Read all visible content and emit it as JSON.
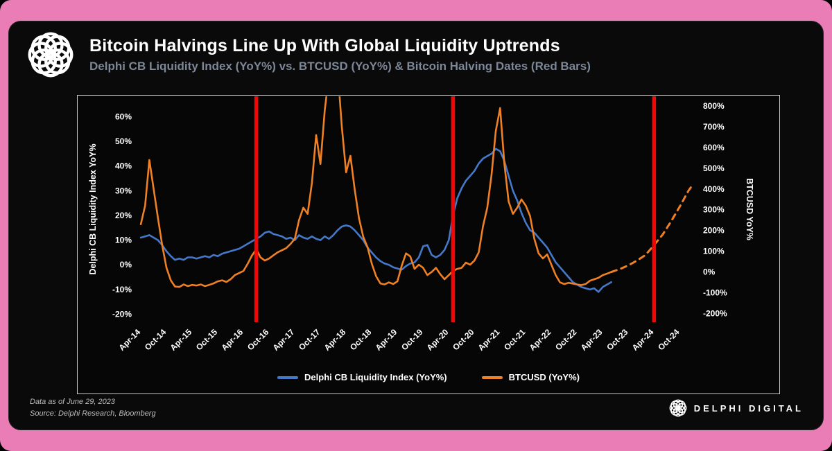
{
  "page": {
    "background_color": "#ea7cb6",
    "card_color": "#0a0a0b"
  },
  "header": {
    "title": "Bitcoin Halvings Line Up With Global Liquidity Uptrends",
    "subtitle": "Delphi CB Liquidity Index (YoY%) vs. BTCUSD (YoY%) & Bitcoin Halving Dates (Red Bars)",
    "logo": "delphi-knot-logo"
  },
  "footer": {
    "data_as_of": "Data as of June 29, 2023",
    "source": "Source: Delphi Research, Bloomberg",
    "brand": "DELPHI DIGITAL"
  },
  "chart_data": {
    "type": "line",
    "title": "Bitcoin Halvings Line Up With Global Liquidity Uptrends",
    "subtitle": "Delphi CB Liquidity Index (YoY%) vs. BTCUSD (YoY%) & Bitcoin Halving Dates (Red Bars)",
    "x_axis": {
      "unit": "months since Apr-2014",
      "tick_labels": [
        "Apr-14",
        "Oct-14",
        "Apr-15",
        "Oct-15",
        "Apr-16",
        "Oct-16",
        "Apr-17",
        "Oct-17",
        "Apr-18",
        "Oct-18",
        "Apr-19",
        "Oct-19",
        "Apr-20",
        "Oct-20",
        "Apr-21",
        "Oct-21",
        "Apr-22",
        "Oct-22",
        "Apr-23",
        "Oct-23",
        "Apr-24",
        "Oct-24"
      ],
      "tick_months": [
        0,
        6,
        12,
        18,
        24,
        30,
        36,
        42,
        48,
        54,
        60,
        66,
        72,
        78,
        84,
        90,
        96,
        102,
        108,
        114,
        120,
        126
      ]
    },
    "x_range": [
      -0.5,
      129.5
    ],
    "left_axis": {
      "label": "Delphi CB Liquidity Index YoY%",
      "tick_labels": [
        "60%",
        "50%",
        "40%",
        "30%",
        "20%",
        "10%",
        "0%",
        "-10%",
        "-20%"
      ],
      "tick_values": [
        60,
        50,
        40,
        30,
        20,
        10,
        0,
        -10,
        -20
      ],
      "range": [
        -23.5,
        68.5
      ]
    },
    "right_axis": {
      "label": "BTCUSD YoY%",
      "tick_labels": [
        "800%",
        "700%",
        "600%",
        "500%",
        "400%",
        "300%",
        "200%",
        "100%",
        "0%",
        "-100%",
        "-200%"
      ],
      "tick_values": [
        800,
        700,
        600,
        500,
        400,
        300,
        200,
        100,
        0,
        -100,
        -200
      ],
      "range": [
        -245,
        850
      ]
    },
    "halvings": {
      "description": "Bitcoin Halving Dates (Red Bars)",
      "color": "#f70505",
      "months": [
        27,
        73,
        120
      ]
    },
    "series": [
      {
        "id": "liquidity",
        "name": "Delphi CB Liquidity Index (YoY%)",
        "axis": "left",
        "color": "#4479c9",
        "style": "solid",
        "points": [
          [
            0,
            11
          ],
          [
            1,
            11.5
          ],
          [
            2,
            12
          ],
          [
            3,
            11
          ],
          [
            4,
            10
          ],
          [
            5,
            8
          ],
          [
            6,
            5.5
          ],
          [
            7,
            3.5
          ],
          [
            8,
            2
          ],
          [
            9,
            2.5
          ],
          [
            10,
            2
          ],
          [
            11,
            3
          ],
          [
            12,
            3
          ],
          [
            13,
            2.5
          ],
          [
            14,
            3
          ],
          [
            15,
            3.5
          ],
          [
            16,
            3
          ],
          [
            17,
            4
          ],
          [
            18,
            3.5
          ],
          [
            19,
            4.5
          ],
          [
            20,
            5
          ],
          [
            21,
            5.5
          ],
          [
            22,
            6
          ],
          [
            23,
            6.5
          ],
          [
            24,
            7.5
          ],
          [
            25,
            8.5
          ],
          [
            26,
            9.5
          ],
          [
            27,
            10.5
          ],
          [
            28,
            11.5
          ],
          [
            29,
            13
          ],
          [
            30,
            13.5
          ],
          [
            31,
            12.5
          ],
          [
            32,
            12
          ],
          [
            33,
            11.5
          ],
          [
            34,
            10.5
          ],
          [
            35,
            11
          ],
          [
            36,
            10
          ],
          [
            37,
            12
          ],
          [
            38,
            11
          ],
          [
            39,
            10.5
          ],
          [
            40,
            11.5
          ],
          [
            41,
            10.5
          ],
          [
            42,
            10
          ],
          [
            43,
            11.5
          ],
          [
            44,
            10.5
          ],
          [
            45,
            12
          ],
          [
            46,
            14
          ],
          [
            47,
            15.5
          ],
          [
            48,
            16
          ],
          [
            49,
            15.5
          ],
          [
            50,
            14
          ],
          [
            51,
            12
          ],
          [
            52,
            10
          ],
          [
            53,
            7
          ],
          [
            54,
            5
          ],
          [
            55,
            3
          ],
          [
            56,
            1.5
          ],
          [
            57,
            0.5
          ],
          [
            58,
            0
          ],
          [
            59,
            -1
          ],
          [
            60,
            -1.5
          ],
          [
            61,
            -2
          ],
          [
            62,
            -0.5
          ],
          [
            63,
            0.5
          ],
          [
            64,
            1
          ],
          [
            65,
            3
          ],
          [
            66,
            7.5
          ],
          [
            67,
            8
          ],
          [
            68,
            4
          ],
          [
            69,
            3
          ],
          [
            70,
            4
          ],
          [
            71,
            6
          ],
          [
            72,
            10
          ],
          [
            73,
            20
          ],
          [
            74,
            27
          ],
          [
            75,
            31
          ],
          [
            76,
            34
          ],
          [
            77,
            36
          ],
          [
            78,
            38
          ],
          [
            79,
            41
          ],
          [
            80,
            43
          ],
          [
            81,
            44
          ],
          [
            82,
            45
          ],
          [
            83,
            47
          ],
          [
            84,
            46
          ],
          [
            85,
            42
          ],
          [
            86,
            36
          ],
          [
            87,
            30
          ],
          [
            88,
            26
          ],
          [
            89,
            21
          ],
          [
            90,
            17
          ],
          [
            91,
            14
          ],
          [
            92,
            13
          ],
          [
            93,
            11
          ],
          [
            94,
            9
          ],
          [
            95,
            7
          ],
          [
            96,
            4
          ],
          [
            97,
            1
          ],
          [
            98,
            -1
          ],
          [
            99,
            -3
          ],
          [
            100,
            -5
          ],
          [
            101,
            -7
          ],
          [
            102,
            -8
          ],
          [
            103,
            -9
          ],
          [
            104,
            -9.5
          ],
          [
            105,
            -10
          ],
          [
            106,
            -9.5
          ],
          [
            107,
            -11
          ],
          [
            108,
            -9
          ],
          [
            109,
            -8
          ],
          [
            110,
            -7
          ]
        ]
      },
      {
        "id": "btcusd",
        "name": "BTCUSD (YoY%)",
        "axis": "right",
        "color": "#ef8023",
        "style": "solid",
        "points": [
          [
            0,
            230
          ],
          [
            1,
            320
          ],
          [
            2,
            540
          ],
          [
            3,
            400
          ],
          [
            4,
            260
          ],
          [
            5,
            130
          ],
          [
            6,
            20
          ],
          [
            7,
            -40
          ],
          [
            8,
            -70
          ],
          [
            9,
            -72
          ],
          [
            10,
            -60
          ],
          [
            11,
            -68
          ],
          [
            12,
            -62
          ],
          [
            13,
            -65
          ],
          [
            14,
            -60
          ],
          [
            15,
            -68
          ],
          [
            16,
            -62
          ],
          [
            17,
            -55
          ],
          [
            18,
            -45
          ],
          [
            19,
            -40
          ],
          [
            20,
            -48
          ],
          [
            21,
            -35
          ],
          [
            22,
            -15
          ],
          [
            23,
            -5
          ],
          [
            24,
            5
          ],
          [
            25,
            40
          ],
          [
            26,
            80
          ],
          [
            27,
            110
          ],
          [
            28,
            70
          ],
          [
            29,
            55
          ],
          [
            30,
            65
          ],
          [
            31,
            80
          ],
          [
            32,
            95
          ],
          [
            33,
            105
          ],
          [
            34,
            115
          ],
          [
            35,
            135
          ],
          [
            36,
            160
          ],
          [
            37,
            250
          ],
          [
            38,
            310
          ],
          [
            39,
            280
          ],
          [
            40,
            430
          ],
          [
            41,
            660
          ],
          [
            42,
            520
          ],
          [
            43,
            780
          ],
          [
            44,
            950
          ],
          [
            45,
            900
          ],
          [
            46,
            980
          ],
          [
            47,
            700
          ],
          [
            48,
            480
          ],
          [
            49,
            560
          ],
          [
            50,
            400
          ],
          [
            51,
            260
          ],
          [
            52,
            170
          ],
          [
            53,
            120
          ],
          [
            54,
            40
          ],
          [
            55,
            -20
          ],
          [
            56,
            -55
          ],
          [
            57,
            -60
          ],
          [
            58,
            -50
          ],
          [
            59,
            -58
          ],
          [
            60,
            -45
          ],
          [
            61,
            30
          ],
          [
            62,
            90
          ],
          [
            63,
            75
          ],
          [
            64,
            15
          ],
          [
            65,
            35
          ],
          [
            66,
            20
          ],
          [
            67,
            -15
          ],
          [
            68,
            0
          ],
          [
            69,
            20
          ],
          [
            70,
            -10
          ],
          [
            71,
            -35
          ],
          [
            72,
            -15
          ],
          [
            73,
            5
          ],
          [
            74,
            15
          ],
          [
            75,
            20
          ],
          [
            76,
            45
          ],
          [
            77,
            35
          ],
          [
            78,
            55
          ],
          [
            79,
            95
          ],
          [
            80,
            220
          ],
          [
            81,
            310
          ],
          [
            82,
            470
          ],
          [
            83,
            680
          ],
          [
            84,
            790
          ],
          [
            85,
            520
          ],
          [
            86,
            340
          ],
          [
            87,
            280
          ],
          [
            88,
            310
          ],
          [
            89,
            350
          ],
          [
            90,
            320
          ],
          [
            91,
            270
          ],
          [
            92,
            160
          ],
          [
            93,
            90
          ],
          [
            94,
            65
          ],
          [
            95,
            85
          ],
          [
            96,
            35
          ],
          [
            97,
            -15
          ],
          [
            98,
            -50
          ],
          [
            99,
            -58
          ],
          [
            100,
            -52
          ],
          [
            101,
            -56
          ],
          [
            102,
            -60
          ],
          [
            103,
            -63
          ],
          [
            104,
            -58
          ],
          [
            105,
            -42
          ],
          [
            106,
            -35
          ],
          [
            107,
            -28
          ],
          [
            108,
            -15
          ],
          [
            109,
            -8
          ],
          [
            110,
            0
          ]
        ]
      },
      {
        "id": "btcusd-projection",
        "name": "BTCUSD (YoY%) dashed projection",
        "axis": "right",
        "color": "#ef8023",
        "style": "dashed",
        "points": [
          [
            110,
            0
          ],
          [
            112,
            14
          ],
          [
            114,
            32
          ],
          [
            116,
            55
          ],
          [
            118,
            82
          ],
          [
            120,
            130
          ],
          [
            122,
            180
          ],
          [
            124,
            245
          ],
          [
            126,
            315
          ],
          [
            128,
            390
          ],
          [
            129,
            420
          ]
        ]
      }
    ],
    "legend": [
      {
        "label": "Delphi CB Liquidity Index (YoY%)",
        "color": "#4479c9"
      },
      {
        "label": "BTCUSD (YoY%)",
        "color": "#ef8023"
      }
    ]
  }
}
